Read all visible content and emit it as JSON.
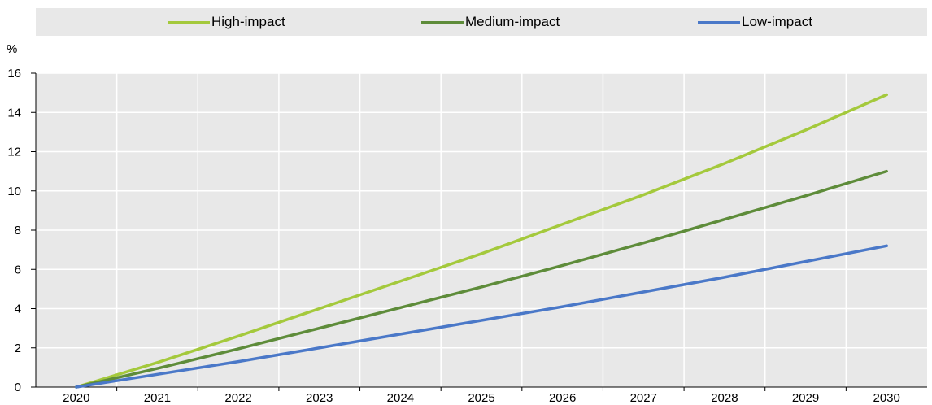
{
  "chart_data": {
    "type": "line",
    "title": "",
    "xlabel": "",
    "ylabel": "%",
    "x": [
      2020,
      2021,
      2022,
      2023,
      2024,
      2025,
      2026,
      2027,
      2028,
      2029,
      2030
    ],
    "xlim": [
      2020,
      2030
    ],
    "ylim": [
      0,
      16
    ],
    "yticks": [
      0,
      2,
      4,
      6,
      8,
      10,
      12,
      14,
      16
    ],
    "grid": true,
    "legend_position": "top",
    "series": [
      {
        "name": "High-impact",
        "color": "#a4c93c",
        "values": [
          0,
          1.25,
          2.6,
          4.0,
          5.4,
          6.8,
          8.3,
          9.8,
          11.4,
          13.1,
          14.9
        ]
      },
      {
        "name": "Medium-impact",
        "color": "#5e8c3a",
        "values": [
          0,
          0.95,
          1.95,
          3.0,
          4.05,
          5.1,
          6.2,
          7.35,
          8.55,
          9.75,
          11.0
        ]
      },
      {
        "name": "Low-impact",
        "color": "#4a78c8",
        "values": [
          0,
          0.65,
          1.3,
          2.0,
          2.7,
          3.4,
          4.1,
          4.85,
          5.6,
          6.4,
          7.2
        ]
      }
    ]
  }
}
